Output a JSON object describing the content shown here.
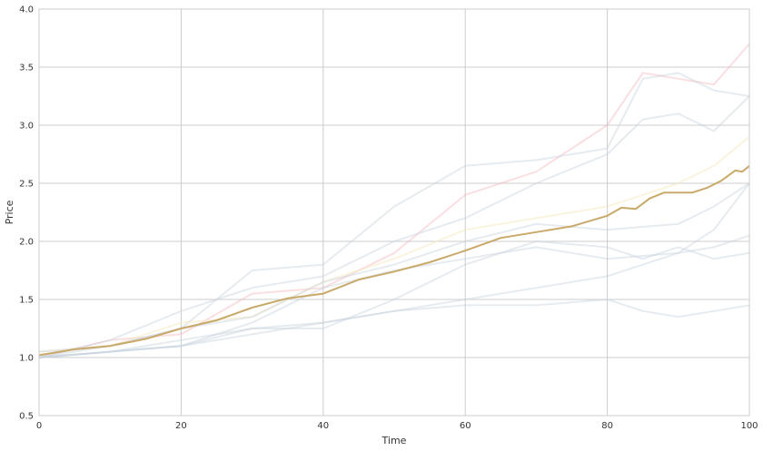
{
  "chart_data": {
    "type": "line",
    "title": "",
    "xlabel": "Time",
    "ylabel": "Price",
    "xlim": [
      0,
      100
    ],
    "ylim": [
      0.5,
      4.0
    ],
    "xticks": [
      0,
      20,
      40,
      60,
      80,
      100
    ],
    "yticks": [
      0.5,
      1.0,
      1.5,
      2.0,
      2.5,
      3.0,
      3.5,
      4.0
    ],
    "grid": true,
    "legend": "none",
    "mean_color": "#c9a96a",
    "series": [
      {
        "points": [
          [
            0,
            1.0
          ],
          [
            10,
            1.15
          ],
          [
            20,
            1.2
          ],
          [
            30,
            1.55
          ],
          [
            40,
            1.6
          ],
          [
            50,
            1.9
          ],
          [
            60,
            2.4
          ],
          [
            70,
            2.6
          ],
          [
            80,
            3.0
          ],
          [
            85,
            3.45
          ],
          [
            90,
            3.4
          ],
          [
            95,
            3.35
          ],
          [
            100,
            3.7
          ]
        ],
        "color": "#f3b8bf",
        "opacity": 0.45
      },
      {
        "points": [
          [
            0,
            1.0
          ],
          [
            10,
            1.1
          ],
          [
            20,
            1.25
          ],
          [
            30,
            1.75
          ],
          [
            40,
            1.8
          ],
          [
            50,
            2.3
          ],
          [
            60,
            2.65
          ],
          [
            70,
            2.7
          ],
          [
            80,
            2.8
          ],
          [
            85,
            3.4
          ],
          [
            90,
            3.45
          ],
          [
            95,
            3.3
          ],
          [
            100,
            3.25
          ]
        ],
        "color": "#c8d3dd",
        "opacity": 0.45
      },
      {
        "points": [
          [
            0,
            1.0
          ],
          [
            10,
            1.15
          ],
          [
            20,
            1.4
          ],
          [
            30,
            1.6
          ],
          [
            40,
            1.7
          ],
          [
            50,
            2.0
          ],
          [
            60,
            2.2
          ],
          [
            70,
            2.5
          ],
          [
            80,
            2.75
          ],
          [
            85,
            3.05
          ],
          [
            90,
            3.1
          ],
          [
            95,
            2.95
          ],
          [
            100,
            3.25
          ]
        ],
        "color": "#c8d3dd",
        "opacity": 0.45
      },
      {
        "points": [
          [
            0,
            1.05
          ],
          [
            10,
            1.1
          ],
          [
            20,
            1.3
          ],
          [
            30,
            1.35
          ],
          [
            40,
            1.65
          ],
          [
            50,
            1.85
          ],
          [
            60,
            2.1
          ],
          [
            70,
            2.2
          ],
          [
            80,
            2.3
          ],
          [
            90,
            2.5
          ],
          [
            95,
            2.65
          ],
          [
            100,
            2.9
          ]
        ],
        "color": "#f6e9c0",
        "opacity": 0.5
      },
      {
        "points": [
          [
            0,
            1.05
          ],
          [
            10,
            1.1
          ],
          [
            20,
            1.25
          ],
          [
            30,
            1.35
          ],
          [
            40,
            1.65
          ],
          [
            50,
            1.8
          ],
          [
            60,
            2.0
          ],
          [
            70,
            2.15
          ],
          [
            80,
            2.1
          ],
          [
            90,
            2.15
          ],
          [
            95,
            2.3
          ],
          [
            100,
            2.5
          ]
        ],
        "color": "#c8d3dd",
        "opacity": 0.45
      },
      {
        "points": [
          [
            0,
            1.0
          ],
          [
            10,
            1.05
          ],
          [
            20,
            1.1
          ],
          [
            30,
            1.3
          ],
          [
            40,
            1.6
          ],
          [
            50,
            1.75
          ],
          [
            60,
            1.85
          ],
          [
            70,
            1.95
          ],
          [
            80,
            1.85
          ],
          [
            90,
            1.9
          ],
          [
            95,
            1.95
          ],
          [
            100,
            2.05
          ]
        ],
        "color": "#c8d3dd",
        "opacity": 0.45
      },
      {
        "points": [
          [
            0,
            1.0
          ],
          [
            10,
            1.05
          ],
          [
            20,
            1.15
          ],
          [
            30,
            1.25
          ],
          [
            40,
            1.25
          ],
          [
            50,
            1.5
          ],
          [
            60,
            1.8
          ],
          [
            70,
            2.0
          ],
          [
            80,
            1.95
          ],
          [
            85,
            1.85
          ],
          [
            90,
            1.95
          ],
          [
            95,
            1.85
          ],
          [
            100,
            1.9
          ]
        ],
        "color": "#c8d3dd",
        "opacity": 0.45
      },
      {
        "points": [
          [
            0,
            1.0
          ],
          [
            10,
            1.05
          ],
          [
            20,
            1.1
          ],
          [
            30,
            1.25
          ],
          [
            40,
            1.3
          ],
          [
            50,
            1.4
          ],
          [
            60,
            1.45
          ],
          [
            70,
            1.45
          ],
          [
            80,
            1.5
          ],
          [
            85,
            1.4
          ],
          [
            90,
            1.35
          ],
          [
            95,
            1.4
          ],
          [
            100,
            1.45
          ]
        ],
        "color": "#c8d3dd",
        "opacity": 0.45
      },
      {
        "points": [
          [
            0,
            1.0
          ],
          [
            10,
            1.05
          ],
          [
            20,
            1.1
          ],
          [
            30,
            1.2
          ],
          [
            40,
            1.3
          ],
          [
            50,
            1.4
          ],
          [
            60,
            1.5
          ],
          [
            70,
            1.6
          ],
          [
            80,
            1.7
          ],
          [
            90,
            1.9
          ],
          [
            95,
            2.1
          ],
          [
            100,
            2.5
          ]
        ],
        "color": "#c8d3dd",
        "opacity": 0.45
      },
      {
        "points": [
          [
            0,
            1.02
          ],
          [
            5,
            1.07
          ],
          [
            10,
            1.1
          ],
          [
            15,
            1.16
          ],
          [
            20,
            1.25
          ],
          [
            25,
            1.32
          ],
          [
            30,
            1.43
          ],
          [
            35,
            1.51
          ],
          [
            40,
            1.55
          ],
          [
            45,
            1.67
          ],
          [
            50,
            1.74
          ],
          [
            55,
            1.82
          ],
          [
            60,
            1.92
          ],
          [
            65,
            2.03
          ],
          [
            70,
            2.08
          ],
          [
            75,
            2.13
          ],
          [
            80,
            2.22
          ],
          [
            82,
            2.29
          ],
          [
            84,
            2.28
          ],
          [
            86,
            2.37
          ],
          [
            88,
            2.42
          ],
          [
            90,
            2.42
          ],
          [
            92,
            2.42
          ],
          [
            94,
            2.46
          ],
          [
            96,
            2.52
          ],
          [
            98,
            2.61
          ],
          [
            99,
            2.6
          ],
          [
            100,
            2.65
          ]
        ],
        "color": "#c9a96a",
        "opacity": 1.0,
        "stroke_width": 2
      }
    ]
  }
}
